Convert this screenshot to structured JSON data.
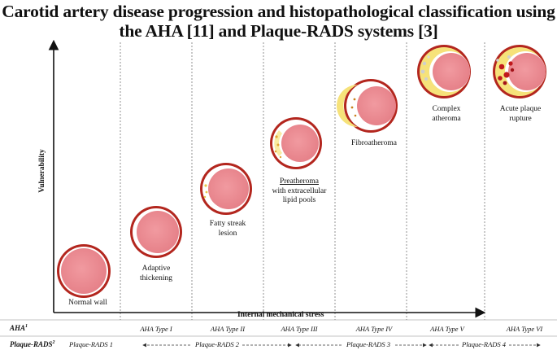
{
  "title": {
    "line1": "Carotid artery disease progression and histopathological classification using",
    "line2": "the AHA [11] and Plaque-RADS systems [3]"
  },
  "axes": {
    "y_label": "Vulnerability",
    "x_label": "Internal mechanical stress"
  },
  "stages": [
    {
      "label_line1": "Normal wall",
      "label_line2": "",
      "label_line3": ""
    },
    {
      "label_line1": "Adaptive",
      "label_line2": "thickening",
      "label_line3": ""
    },
    {
      "label_line1": "Fatty streak",
      "label_line2": "lesion",
      "label_line3": ""
    },
    {
      "label_line1": "Preatheroma",
      "label_line2": "with extracellular",
      "label_line3": "lipid pools"
    },
    {
      "label_line1": "Fibroatheroma",
      "label_line2": "",
      "label_line3": ""
    },
    {
      "label_line1": "Complex",
      "label_line2": "atheroma",
      "label_line3": ""
    },
    {
      "label_line1": "Acute plaque",
      "label_line2": "rupture",
      "label_line3": ""
    }
  ],
  "aha_row": {
    "label": "AHA",
    "sup": "1",
    "types": [
      "AHA Type I",
      "AHA Type II",
      "AHA Type III",
      "AHA Type IV",
      "AHA Type V",
      "AHA Type VI"
    ]
  },
  "rads_row": {
    "label": "Plaque-RADS",
    "sup": "2",
    "grades": [
      "Plaque-RADS 1",
      "Plaque-RADS 2",
      "Plaque-RADS 3",
      "Plaque-RADS 4"
    ]
  },
  "colors": {
    "vessel_rim": "#b3261e",
    "vessel_lumen": "#ec8e94",
    "lipid": "#f6e27a",
    "rupture": "#c0181c"
  }
}
